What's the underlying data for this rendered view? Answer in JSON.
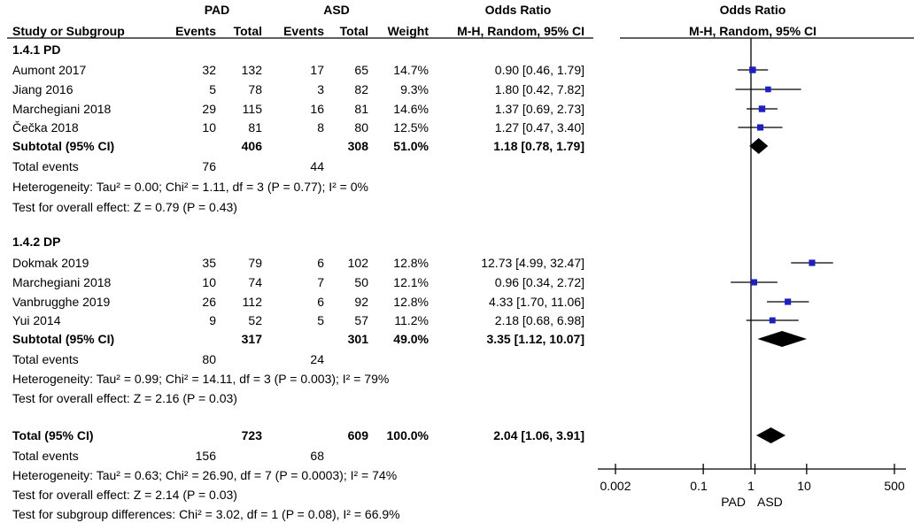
{
  "header": {
    "group1": "PAD",
    "group2": "ASD",
    "or_text": "Odds Ratio",
    "or_plot": "Odds Ratio",
    "study": "Study or Subgroup",
    "events1": "Events",
    "total1": "Total",
    "events2": "Events",
    "total2": "Total",
    "weight": "Weight",
    "method_text": "M-H, Random, 95% CI",
    "method_plot": "M-H, Random, 95% CI"
  },
  "subgroups": [
    {
      "label": "1.4.1 PD",
      "studies": [
        {
          "name": "Aumont 2017",
          "e1": "32",
          "t1": "132",
          "e2": "17",
          "t2": "65",
          "w": "14.7%",
          "ci": "0.90 [0.46, 1.79]"
        },
        {
          "name": "Jiang 2016",
          "e1": "5",
          "t1": "78",
          "e2": "3",
          "t2": "82",
          "w": "9.3%",
          "ci": "1.80 [0.42, 7.82]"
        },
        {
          "name": "Marchegiani 2018",
          "e1": "29",
          "t1": "115",
          "e2": "16",
          "t2": "81",
          "w": "14.6%",
          "ci": "1.37 [0.69, 2.73]"
        },
        {
          "name": "Čečka 2018",
          "e1": "10",
          "t1": "81",
          "e2": "8",
          "t2": "80",
          "w": "12.5%",
          "ci": "1.27 [0.47, 3.40]"
        }
      ],
      "subtotal": {
        "label": "Subtotal (95% CI)",
        "t1": "406",
        "t2": "308",
        "w": "51.0%",
        "ci": "1.18 [0.78, 1.79]"
      },
      "events": {
        "label": "Total events",
        "e1": "76",
        "e2": "44"
      },
      "heterogeneity": "Heterogeneity: Tau² = 0.00; Chi² = 1.11, df = 3 (P = 0.77); I² = 0%",
      "overall": "Test for overall effect: Z = 0.79 (P = 0.43)"
    },
    {
      "label": "1.4.2 DP",
      "studies": [
        {
          "name": "Dokmak  2019",
          "e1": "35",
          "t1": "79",
          "e2": "6",
          "t2": "102",
          "w": "12.8%",
          "ci": "12.73 [4.99, 32.47]"
        },
        {
          "name": "Marchegiani 2018",
          "e1": "10",
          "t1": "74",
          "e2": "7",
          "t2": "50",
          "w": "12.1%",
          "ci": "0.96 [0.34, 2.72]"
        },
        {
          "name": "Vanbrugghe 2019",
          "e1": "26",
          "t1": "112",
          "e2": "6",
          "t2": "92",
          "w": "12.8%",
          "ci": "4.33 [1.70, 11.06]"
        },
        {
          "name": "Yui 2014",
          "e1": "9",
          "t1": "52",
          "e2": "5",
          "t2": "57",
          "w": "11.2%",
          "ci": "2.18 [0.68, 6.98]"
        }
      ],
      "subtotal": {
        "label": "Subtotal (95% CI)",
        "t1": "317",
        "t2": "301",
        "w": "49.0%",
        "ci": "3.35 [1.12, 10.07]"
      },
      "events": {
        "label": "Total events",
        "e1": "80",
        "e2": "24"
      },
      "heterogeneity": "Heterogeneity: Tau² = 0.99; Chi² = 14.11, df = 3 (P = 0.003); I² = 79%",
      "overall": "Test for overall effect: Z = 2.16 (P = 0.03)"
    }
  ],
  "total": {
    "label": "Total (95% CI)",
    "t1": "723",
    "t2": "609",
    "w": "100.0%",
    "ci": "2.04 [1.06, 3.91]"
  },
  "total_events": {
    "label": "Total events",
    "e1": "156",
    "e2": "68"
  },
  "total_heterogeneity": "Heterogeneity: Tau² = 0.63; Chi² = 26.90, df = 7 (P = 0.0003); I² = 74%",
  "total_overall": "Test for overall effect: Z = 2.14 (P = 0.03)",
  "subgroup_diff": "Test for subgroup differences: Chi² = 3.02, df = 1 (P = 0.08), I² = 66.9%",
  "axis": {
    "ticks": [
      "0.002",
      "0.1",
      "1",
      "10",
      "500"
    ],
    "favours_left": "PAD",
    "favours_right": "ASD"
  },
  "chart_data": {
    "type": "forest",
    "scale": "log",
    "xlim": [
      0.002,
      500
    ],
    "marker_color": "#1f1fbf",
    "studies": [
      {
        "subgroup": "1.4.1 PD",
        "name": "Aumont 2017",
        "or": 0.9,
        "lo": 0.46,
        "hi": 1.79,
        "weight": 14.7
      },
      {
        "subgroup": "1.4.1 PD",
        "name": "Jiang 2016",
        "or": 1.8,
        "lo": 0.42,
        "hi": 7.82,
        "weight": 9.3
      },
      {
        "subgroup": "1.4.1 PD",
        "name": "Marchegiani 2018",
        "or": 1.37,
        "lo": 0.69,
        "hi": 2.73,
        "weight": 14.6
      },
      {
        "subgroup": "1.4.1 PD",
        "name": "Čečka 2018",
        "or": 1.27,
        "lo": 0.47,
        "hi": 3.4,
        "weight": 12.5
      },
      {
        "subgroup": "1.4.2 DP",
        "name": "Dokmak  2019",
        "or": 12.73,
        "lo": 4.99,
        "hi": 32.47,
        "weight": 12.8
      },
      {
        "subgroup": "1.4.2 DP",
        "name": "Marchegiani 2018",
        "or": 0.96,
        "lo": 0.34,
        "hi": 2.72,
        "weight": 12.1
      },
      {
        "subgroup": "1.4.2 DP",
        "name": "Vanbrugghe 2019",
        "or": 4.33,
        "lo": 1.7,
        "hi": 11.06,
        "weight": 12.8
      },
      {
        "subgroup": "1.4.2 DP",
        "name": "Yui 2014",
        "or": 2.18,
        "lo": 0.68,
        "hi": 6.98,
        "weight": 11.2
      }
    ],
    "diamonds": [
      {
        "name": "Subtotal 1.4.1 PD",
        "or": 1.18,
        "lo": 0.78,
        "hi": 1.79
      },
      {
        "name": "Subtotal 1.4.2 DP",
        "or": 3.35,
        "lo": 1.12,
        "hi": 10.07
      },
      {
        "name": "Total",
        "or": 2.04,
        "lo": 1.06,
        "hi": 3.91
      }
    ]
  }
}
